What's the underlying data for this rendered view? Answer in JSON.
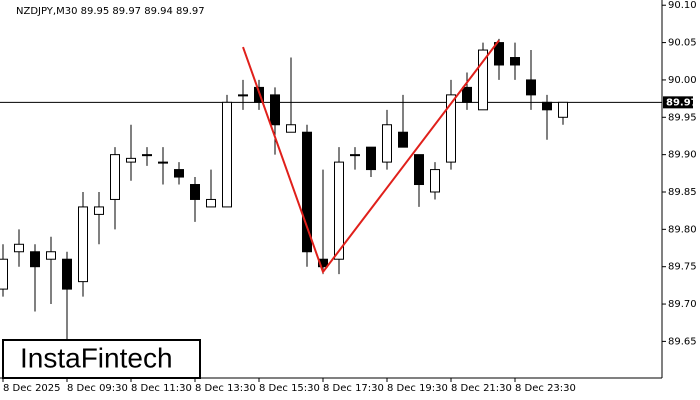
{
  "chart_data": {
    "type": "candlestick",
    "title": "NZDJPY,M30  89.95 89.97 89.94 89.97",
    "categories": [
      "8 Dec 2025",
      null,
      null,
      null,
      "8 Dec 09:30",
      null,
      null,
      null,
      "8 Dec 11:30",
      null,
      null,
      null,
      "8 Dec 13:30",
      null,
      null,
      null,
      "8 Dec 15:30",
      null,
      null,
      null,
      "8 Dec 17:30",
      null,
      null,
      null,
      "8 Dec 19:30",
      null,
      null,
      null,
      "8 Dec 21:30",
      null,
      null,
      null,
      "8 Dec 23:30",
      null,
      null,
      null
    ],
    "open": [
      89.72,
      89.77,
      89.77,
      89.76,
      89.76,
      89.73,
      89.82,
      89.84,
      89.89,
      89.9,
      89.89,
      89.88,
      89.86,
      89.83,
      89.83,
      89.98,
      89.99,
      89.98,
      89.93,
      89.93,
      89.76,
      89.76,
      89.9,
      89.91,
      89.89,
      89.93,
      89.9,
      89.85,
      89.89,
      89.99,
      89.96,
      90.05,
      90.03,
      90.0,
      89.97,
      89.95
    ],
    "high": [
      89.78,
      89.8,
      89.78,
      89.79,
      89.77,
      89.85,
      89.85,
      89.91,
      89.94,
      89.91,
      89.91,
      89.89,
      89.87,
      89.88,
      89.98,
      90.0,
      90.0,
      89.99,
      90.03,
      89.94,
      89.88,
      89.91,
      89.91,
      89.91,
      89.96,
      89.98,
      89.9,
      89.89,
      90.0,
      90.01,
      90.05,
      90.055,
      90.05,
      90.04,
      89.98,
      89.97
    ],
    "low": [
      89.71,
      89.75,
      89.69,
      89.7,
      89.65,
      89.71,
      89.78,
      89.8,
      89.865,
      89.885,
      89.86,
      89.86,
      89.81,
      89.83,
      89.83,
      89.96,
      89.96,
      89.9,
      89.93,
      89.75,
      89.74,
      89.74,
      89.88,
      89.87,
      89.88,
      89.91,
      89.83,
      89.84,
      89.88,
      89.96,
      89.96,
      90.0,
      90.0,
      89.96,
      89.92,
      89.94
    ],
    "close": [
      89.76,
      89.78,
      89.75,
      89.77,
      89.72,
      89.83,
      89.83,
      89.9,
      89.895,
      89.9,
      89.89,
      89.87,
      89.84,
      89.84,
      89.97,
      89.98,
      89.97,
      89.94,
      89.94,
      89.77,
      89.75,
      89.89,
      89.9,
      89.88,
      89.94,
      89.91,
      89.86,
      89.88,
      89.98,
      89.97,
      90.04,
      90.02,
      90.02,
      89.98,
      89.96,
      89.97
    ],
    "up_color": "#ffffff",
    "down_color": "#000000",
    "ylim": [
      89.601,
      90.107
    ],
    "yticks": [
      89.65,
      {
        "value": 89.7,
        "label": "89.70"
      },
      89.75,
      {
        "value": 89.8,
        "label": "89.80"
      },
      89.85,
      {
        "value": 89.9,
        "label": "89.90"
      },
      89.95,
      {
        "value": 90,
        "label": "90.00"
      },
      90.05,
      {
        "value": 90.1,
        "label": "90.10"
      }
    ],
    "last_price": {
      "value": 89.97,
      "label": "89.97"
    },
    "pattern_line": {
      "color": "#e0201b",
      "points": [
        {
          "index": 15,
          "value": 90.044
        },
        {
          "index": 20,
          "value": 89.743
        },
        {
          "index": 31,
          "value": 90.053
        }
      ]
    },
    "watermark": "InstaFintech"
  }
}
